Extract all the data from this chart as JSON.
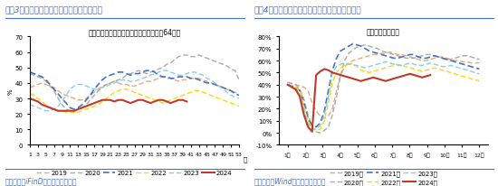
{
  "chart1": {
    "title": "图表3：近半月石油沥青装置开工率环比续升",
    "subtitle": "开工率：石油沥青装置（国内样本企业：64家）",
    "ylabel": "%",
    "xlim": [
      1,
      53
    ],
    "ylim": [
      0,
      70
    ],
    "yticks": [
      0,
      10,
      20,
      30,
      40,
      50,
      60,
      70
    ],
    "xticks": [
      1,
      3,
      5,
      7,
      9,
      11,
      13,
      15,
      17,
      19,
      21,
      23,
      25,
      27,
      29,
      31,
      33,
      35,
      37,
      39,
      41,
      43,
      45,
      47,
      49,
      51,
      53
    ],
    "source": "资料来源：iFinD；国盛证券研究所",
    "series_order": [
      "2019",
      "2020",
      "2021",
      "2022",
      "2023",
      "2024"
    ],
    "series": {
      "2019": {
        "color": "#E8A87C",
        "linestyle": "--",
        "linewidth": 1.0,
        "values": [
          37,
          38,
          39,
          40,
          39,
          38,
          37,
          35,
          33,
          32,
          31,
          30,
          29,
          29,
          30,
          32,
          34,
          36,
          38,
          39,
          40,
          41,
          40,
          39,
          39,
          38,
          38,
          39,
          40,
          41,
          41,
          42,
          43,
          44,
          43,
          43,
          42,
          41,
          42,
          42,
          43,
          43,
          43,
          42,
          41,
          40,
          39,
          38,
          37,
          36,
          35,
          34,
          33
        ]
      },
      "2020": {
        "color": "#AAAAAA",
        "linestyle": "--",
        "linewidth": 1.0,
        "values": [
          46,
          45,
          44,
          43,
          41,
          38,
          35,
          30,
          26,
          23,
          22,
          22,
          23,
          24,
          26,
          29,
          32,
          35,
          37,
          39,
          40,
          41,
          42,
          43,
          45,
          46,
          47,
          48,
          47,
          46,
          47,
          48,
          49,
          50,
          52,
          53,
          55,
          57,
          58,
          58,
          57,
          57,
          58,
          57,
          56,
          55,
          54,
          53,
          52,
          51,
          49,
          48,
          42
        ]
      },
      "2021": {
        "color": "#4472C4",
        "linestyle": "--",
        "linewidth": 1.2,
        "values": [
          47,
          46,
          45,
          44,
          42,
          39,
          36,
          33,
          30,
          27,
          24,
          23,
          24,
          26,
          29,
          32,
          36,
          39,
          42,
          44,
          45,
          46,
          47,
          47,
          46,
          45,
          46,
          46,
          47,
          48,
          48,
          47,
          45,
          44,
          44,
          43,
          43,
          44,
          44,
          44,
          43,
          43,
          42,
          41,
          40,
          40,
          39,
          38,
          37,
          36,
          35,
          33,
          32
        ]
      },
      "2022": {
        "color": "#FFD700",
        "linestyle": "--",
        "linewidth": 1.0,
        "values": [
          33,
          32,
          30,
          28,
          26,
          24,
          23,
          22,
          22,
          21,
          21,
          21,
          21,
          22,
          23,
          24,
          25,
          26,
          28,
          30,
          32,
          34,
          35,
          36,
          36,
          35,
          34,
          33,
          32,
          31,
          30,
          29,
          28,
          27,
          28,
          29,
          30,
          31,
          32,
          33,
          34,
          35,
          35,
          34,
          33,
          32,
          31,
          30,
          29,
          28,
          27,
          26,
          25
        ]
      },
      "2023": {
        "color": "#87CEEB",
        "linestyle": "--",
        "linewidth": 1.0,
        "values": [
          26,
          25,
          24,
          23,
          22,
          22,
          23,
          25,
          28,
          32,
          36,
          38,
          39,
          39,
          38,
          37,
          36,
          36,
          37,
          38,
          39,
          40,
          41,
          42,
          42,
          41,
          41,
          42,
          43,
          44,
          45,
          46,
          47,
          48,
          48,
          47,
          46,
          45,
          45,
          46,
          47,
          47,
          46,
          45,
          43,
          42,
          40,
          38,
          36,
          34,
          32,
          31,
          30
        ]
      },
      "2024": {
        "color": "#C0392B",
        "linestyle": "-",
        "linewidth": 1.5,
        "values": [
          30,
          29,
          28,
          26,
          25,
          24,
          23,
          22,
          22,
          22,
          22,
          22,
          23,
          24,
          25,
          26,
          27,
          28,
          29,
          29,
          29,
          28,
          29,
          29,
          28,
          27,
          28,
          29,
          29,
          28,
          27,
          28,
          29,
          29,
          28,
          27,
          28,
          29,
          29,
          28,
          null,
          null,
          null,
          null,
          null,
          null,
          null,
          null,
          null,
          null,
          null,
          null,
          null
        ]
      }
    }
  },
  "chart2": {
    "title": "图表4：近半月水泥粉磨开工率均值环比有所回落",
    "subtitle": "水泥：粉磨开工率",
    "ylim": [
      -10,
      80
    ],
    "yticks": [
      -10,
      0,
      10,
      20,
      30,
      40,
      50,
      60,
      70,
      80
    ],
    "yticklabels": [
      "-10%",
      "0%",
      "10%",
      "20%",
      "30%",
      "40%",
      "50%",
      "60%",
      "70%",
      "80%"
    ],
    "month_labels": [
      "1月",
      "2月",
      "3月",
      "4月",
      "5月",
      "6月",
      "7月",
      "8月",
      "9月",
      "10月",
      "11月",
      "12月"
    ],
    "n_points": 48,
    "source": "资料来源：Wind；国盛证券研究所",
    "series_order": [
      "2019年",
      "2020年",
      "2021年",
      "2022年",
      "2023年",
      "2024年"
    ],
    "series": {
      "2019年": {
        "color": "#E8A87C",
        "linestyle": "--",
        "linewidth": 1.0,
        "values": [
          42,
          41,
          40,
          39,
          38,
          35,
          25,
          18,
          14,
          12,
          14,
          20,
          35,
          48,
          55,
          58,
          60,
          61,
          62,
          63,
          64,
          65,
          65,
          66,
          66,
          67,
          66,
          65,
          65,
          64,
          63,
          62,
          61,
          60,
          60,
          61,
          62,
          63,
          63,
          62,
          61,
          60,
          60,
          59,
          59,
          58,
          58,
          58
        ]
      },
      "2020年": {
        "color": "#AAAAAA",
        "linestyle": "--",
        "linewidth": 1.0,
        "values": [
          42,
          41,
          40,
          36,
          28,
          15,
          5,
          1,
          0,
          2,
          5,
          15,
          30,
          48,
          60,
          66,
          69,
          71,
          72,
          73,
          72,
          71,
          70,
          68,
          67,
          66,
          65,
          64,
          63,
          62,
          62,
          62,
          63,
          64,
          65,
          65,
          64,
          63,
          62,
          61,
          61,
          62,
          63,
          64,
          64,
          63,
          62,
          61
        ]
      },
      "2021年": {
        "color": "#4472C4",
        "linestyle": "--",
        "linewidth": 1.2,
        "values": [
          40,
          39,
          38,
          35,
          25,
          12,
          6,
          5,
          8,
          18,
          35,
          52,
          62,
          68,
          70,
          72,
          74,
          73,
          72,
          70,
          68,
          67,
          66,
          65,
          64,
          63,
          62,
          62,
          63,
          64,
          65,
          65,
          63,
          62,
          62,
          63,
          64,
          63,
          62,
          61,
          60,
          59,
          58,
          57,
          56,
          55,
          54,
          53
        ]
      },
      "2022年": {
        "color": "#FFD700",
        "linestyle": "--",
        "linewidth": 1.0,
        "values": [
          40,
          39,
          38,
          35,
          22,
          10,
          4,
          2,
          3,
          10,
          25,
          42,
          50,
          54,
          56,
          57,
          58,
          55,
          52,
          51,
          50,
          51,
          52,
          53,
          54,
          55,
          56,
          57,
          56,
          55,
          54,
          53,
          52,
          51,
          52,
          53,
          54,
          53,
          52,
          51,
          50,
          49,
          48,
          47,
          46,
          45,
          44,
          43
        ]
      },
      "2023年": {
        "color": "#87CEEB",
        "linestyle": "--",
        "linewidth": 1.0,
        "values": [
          40,
          39,
          37,
          32,
          20,
          8,
          3,
          3,
          6,
          15,
          30,
          50,
          55,
          57,
          58,
          57,
          56,
          56,
          55,
          54,
          55,
          56,
          57,
          58,
          59,
          58,
          57,
          56,
          56,
          57,
          58,
          57,
          56,
          56,
          57,
          58,
          57,
          56,
          55,
          55,
          56,
          55,
          54,
          53,
          52,
          51,
          50,
          49
        ]
      },
      "2024年": {
        "color": "#C0392B",
        "linestyle": "-",
        "linewidth": 1.5,
        "values": [
          40,
          38,
          36,
          30,
          15,
          5,
          1,
          48,
          51,
          53,
          52,
          50,
          49,
          48,
          47,
          46,
          45,
          44,
          43,
          44,
          45,
          46,
          45,
          44,
          43,
          44,
          45,
          46,
          47,
          48,
          49,
          48,
          47,
          46,
          47,
          48,
          null,
          null,
          null,
          null,
          null,
          null,
          null,
          null,
          null,
          null,
          null,
          null
        ]
      }
    }
  },
  "bg_color": "#FFFFFF",
  "panel_bg": "#FFFFFF",
  "title_color": "#4472C4",
  "source_color": "#4472C4",
  "title_fontsize": 6.5,
  "source_fontsize": 5.5,
  "tick_fontsize": 5.0,
  "subtitle_fontsize": 5.5,
  "legend_fontsize": 5.0
}
